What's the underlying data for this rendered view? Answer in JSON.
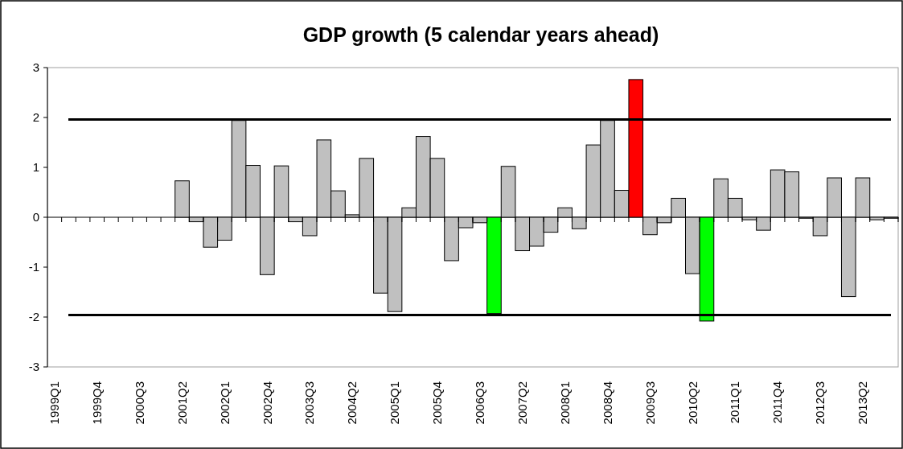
{
  "chart_data": {
    "type": "bar",
    "title": "GDP growth (5 calendar years ahead)",
    "categories": [
      "1999Q1",
      null,
      null,
      "1999Q4",
      null,
      null,
      "2000Q3",
      null,
      null,
      "2001Q2",
      null,
      null,
      "2002Q1",
      null,
      null,
      "2002Q4",
      null,
      null,
      "2003Q3",
      null,
      null,
      "2004Q2",
      null,
      null,
      "2005Q1",
      null,
      null,
      "2005Q4",
      null,
      null,
      "2006Q3",
      null,
      null,
      "2007Q2",
      null,
      null,
      "2008Q1",
      null,
      null,
      "2008Q4",
      null,
      null,
      "2009Q3",
      null,
      null,
      "2010Q2",
      null,
      null,
      "2011Q1",
      null,
      null,
      "2011Q4",
      null,
      null,
      "2012Q3",
      null,
      null,
      "2013Q2",
      null,
      null
    ],
    "values": [
      null,
      null,
      null,
      null,
      null,
      null,
      null,
      null,
      null,
      0.73,
      -0.09,
      -0.6,
      -0.46,
      1.94,
      1.04,
      -1.15,
      1.03,
      -0.09,
      -0.37,
      1.55,
      0.53,
      0.05,
      1.18,
      -1.52,
      -1.89,
      0.19,
      1.62,
      1.18,
      -0.87,
      -0.21,
      -0.11,
      -1.93,
      1.02,
      -0.67,
      -0.58,
      -0.3,
      0.19,
      -0.23,
      1.45,
      1.94,
      0.54,
      2.76,
      -0.35,
      -0.11,
      0.38,
      -1.13,
      -2.08,
      0.77,
      0.38,
      -0.05,
      -0.26,
      0.95,
      0.91,
      -0.02,
      -0.37,
      0.79,
      -1.59,
      0.79,
      -0.05,
      -0.02
    ],
    "colors": [
      null,
      null,
      null,
      null,
      null,
      null,
      null,
      null,
      null,
      "#c0c0c0",
      "#c0c0c0",
      "#c0c0c0",
      "#c0c0c0",
      "#c0c0c0",
      "#c0c0c0",
      "#c0c0c0",
      "#c0c0c0",
      "#c0c0c0",
      "#c0c0c0",
      "#c0c0c0",
      "#c0c0c0",
      "#c0c0c0",
      "#c0c0c0",
      "#c0c0c0",
      "#c0c0c0",
      "#c0c0c0",
      "#c0c0c0",
      "#c0c0c0",
      "#c0c0c0",
      "#c0c0c0",
      "#c0c0c0",
      "#00ff00",
      "#c0c0c0",
      "#c0c0c0",
      "#c0c0c0",
      "#c0c0c0",
      "#c0c0c0",
      "#c0c0c0",
      "#c0c0c0",
      "#c0c0c0",
      "#c0c0c0",
      "#ff0000",
      "#c0c0c0",
      "#c0c0c0",
      "#c0c0c0",
      "#c0c0c0",
      "#00ff00",
      "#c0c0c0",
      "#c0c0c0",
      "#c0c0c0",
      "#c0c0c0",
      "#c0c0c0",
      "#c0c0c0",
      "#c0c0c0",
      "#c0c0c0",
      "#c0c0c0",
      "#c0c0c0",
      "#c0c0c0",
      "#c0c0c0",
      "#c0c0c0"
    ],
    "ylim": [
      -3,
      3
    ],
    "yticks": [
      -3,
      -2,
      -1,
      0,
      1,
      2,
      3
    ],
    "ref_lines": [
      {
        "axis": "y",
        "value": 1.96,
        "color": "#000000"
      },
      {
        "axis": "y",
        "value": -1.96,
        "color": "#000000"
      }
    ]
  }
}
